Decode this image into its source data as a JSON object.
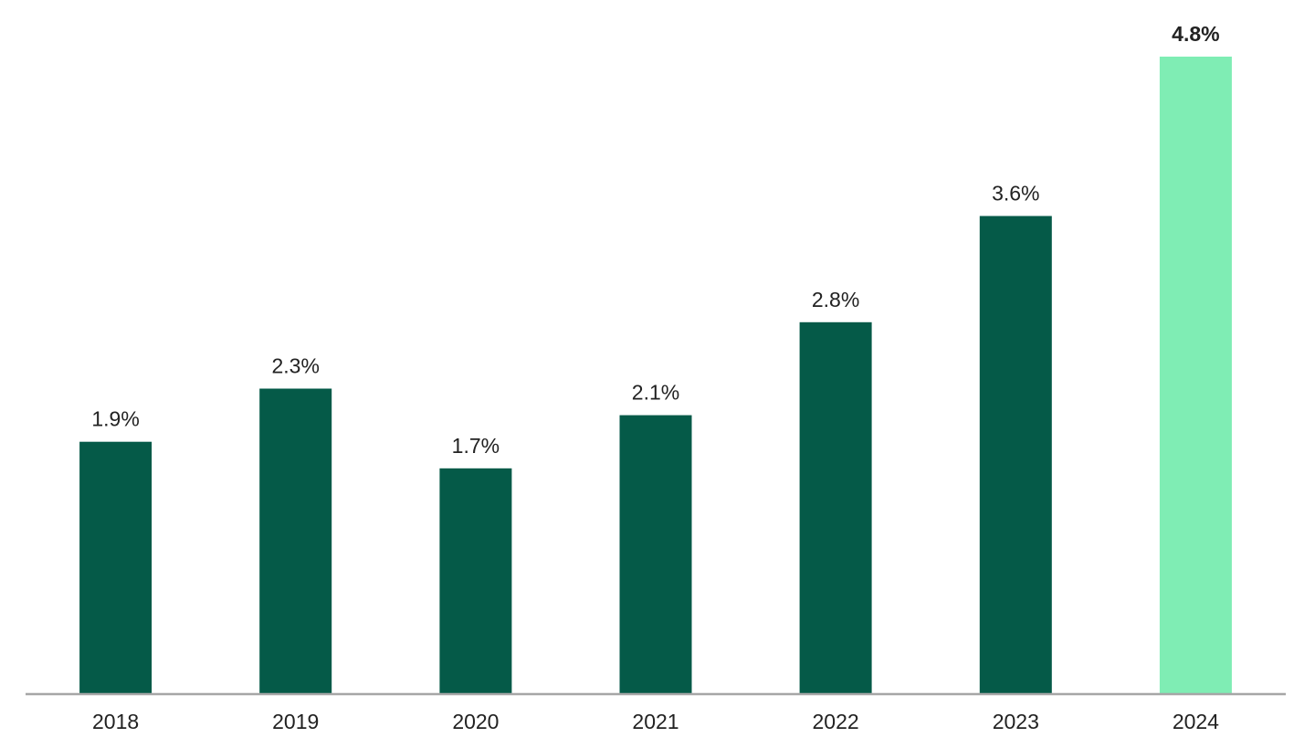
{
  "chart_data": {
    "type": "bar",
    "title": "",
    "xlabel": "",
    "ylabel": "",
    "categories": [
      "2018",
      "2019",
      "2020",
      "2021",
      "2022",
      "2023",
      "2024"
    ],
    "values": [
      1.9,
      2.3,
      1.7,
      2.1,
      2.8,
      3.6,
      4.8
    ],
    "value_labels": [
      "1.9%",
      "2.3%",
      "1.7%",
      "2.1%",
      "2.8%",
      "3.6%",
      "4.8%"
    ],
    "highlight_category": "2024",
    "ylim": [
      0,
      4.8
    ],
    "grid": false,
    "legend": "none",
    "colors": {
      "bar": "#055A48",
      "highlight_bar": "#7FEDB4",
      "axis": "#A6A6A6",
      "text": "#222222"
    }
  }
}
